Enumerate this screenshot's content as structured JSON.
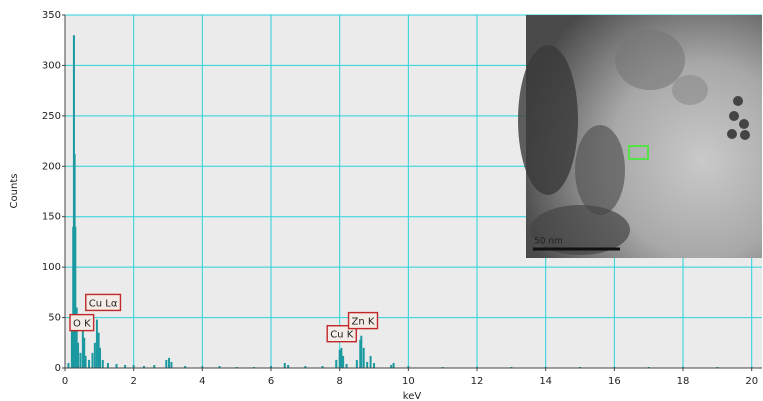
{
  "chart_data": {
    "type": "bar",
    "x_label": "keV",
    "y_label": "Counts",
    "x": [
      0.1,
      0.2,
      0.24,
      0.26,
      0.28,
      0.3,
      0.34,
      0.38,
      0.45,
      0.52,
      0.56,
      0.6,
      0.7,
      0.8,
      0.87,
      0.93,
      0.98,
      1.02,
      1.1,
      1.25,
      1.5,
      1.75,
      2.0,
      2.3,
      2.6,
      2.95,
      3.03,
      3.1,
      3.5,
      4.0,
      4.5,
      5.0,
      5.5,
      6.0,
      6.4,
      6.5,
      7.0,
      7.5,
      7.9,
      8.0,
      8.05,
      8.1,
      8.2,
      8.5,
      8.6,
      8.63,
      8.7,
      8.8,
      8.9,
      9.0,
      9.5,
      9.57,
      10,
      11,
      12,
      13,
      14,
      15,
      16,
      17,
      18,
      19,
      20
    ],
    "values": [
      5,
      40,
      140,
      330,
      212,
      140,
      60,
      25,
      15,
      45,
      30,
      12,
      8,
      15,
      25,
      48,
      35,
      20,
      8,
      5,
      4,
      3,
      3,
      2,
      3,
      8,
      10,
      6,
      2,
      2,
      2,
      1,
      1,
      2,
      5,
      3,
      2,
      2,
      8,
      18,
      20,
      12,
      4,
      8,
      28,
      32,
      20,
      6,
      12,
      5,
      3,
      5,
      2,
      1,
      1,
      1,
      1,
      1,
      1,
      1,
      1,
      1,
      1
    ],
    "color": "#1a9aa0",
    "xlim": [
      0,
      20.3
    ],
    "xticks": [
      0,
      2,
      4,
      6,
      8,
      10,
      12,
      14,
      16,
      18,
      20
    ],
    "ylim": [
      0,
      350
    ],
    "yticks": [
      0,
      50,
      100,
      150,
      200,
      250,
      300,
      350
    ],
    "grid": true,
    "annotations": [
      {
        "text": "O K",
        "x": 0.49,
        "y": 45
      },
      {
        "text": "Cu Lα",
        "x": 1.11,
        "y": 65
      },
      {
        "text": "Cu K",
        "x": 8.06,
        "y": 34
      },
      {
        "text": "Zn K",
        "x": 8.68,
        "y": 47
      }
    ],
    "inset_scale_label": "50 nm"
  }
}
